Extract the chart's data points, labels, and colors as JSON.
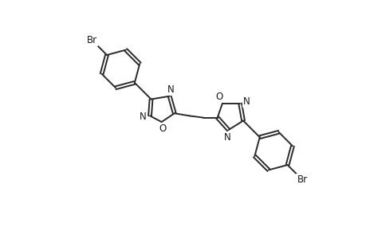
{
  "background_color": "#ffffff",
  "line_color": "#2a2a2a",
  "text_color": "#1a1a1a",
  "line_width": 1.4,
  "font_size": 8.5,
  "figsize": [
    4.6,
    3.0
  ],
  "dpi": 100,
  "xlim": [
    0,
    460
  ],
  "ylim": [
    0,
    300
  ]
}
